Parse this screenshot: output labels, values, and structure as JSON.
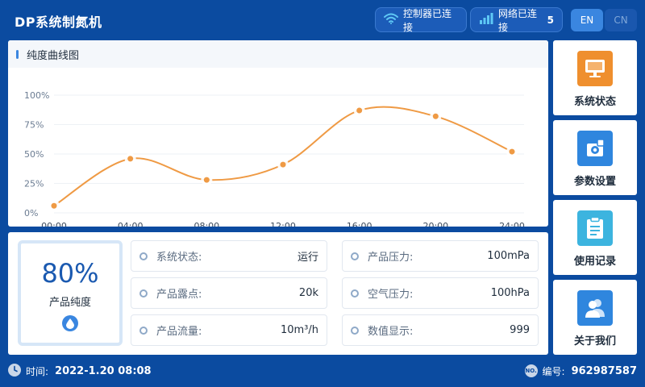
{
  "header": {
    "title": "DP系统制氮机",
    "controller_status": "控制器已连接",
    "network_status": "网络已连接",
    "network_count": "5",
    "lang_en": "EN",
    "lang_cn": "CN"
  },
  "chart_panel": {
    "title": "纯度曲线图"
  },
  "chart_data": {
    "type": "line",
    "x": [
      "00:00",
      "04:00",
      "08:00",
      "12:00",
      "16:00",
      "20:00",
      "24:00"
    ],
    "series": [
      {
        "values": [
          6,
          46,
          28,
          41,
          87,
          82,
          52
        ]
      }
    ],
    "y_ticks": [
      "0%",
      "25%",
      "50%",
      "75%",
      "100%"
    ],
    "ylim": [
      0,
      100
    ],
    "grid": true,
    "line_color": "#ef9a44"
  },
  "purity": {
    "value": "80%",
    "label": "产品纯度"
  },
  "fields": [
    {
      "label": "系统状态:",
      "value": "运行"
    },
    {
      "label": "产品压力:",
      "value": "100mPa"
    },
    {
      "label": "产品露点:",
      "value": "20k"
    },
    {
      "label": "空气压力:",
      "value": "100hPa"
    },
    {
      "label": "产品流量:",
      "value": "10m³/h"
    },
    {
      "label": "数值显示:",
      "value": "999"
    }
  ],
  "nav": [
    {
      "label": "系统状态",
      "icon": "monitor-icon",
      "color": "#ef8f2e"
    },
    {
      "label": "参数设置",
      "icon": "settings-icon",
      "color": "#2f86de"
    },
    {
      "label": "使用记录",
      "icon": "clipboard-icon",
      "color": "#3cb4df"
    },
    {
      "label": "关于我们",
      "icon": "users-icon",
      "color": "#2f86de"
    }
  ],
  "footer": {
    "time_label": "时间:",
    "time_value": "2022-1.20 08:08",
    "serial_badge": "NO.",
    "serial_label": "编号:",
    "serial_value": "962987587"
  }
}
